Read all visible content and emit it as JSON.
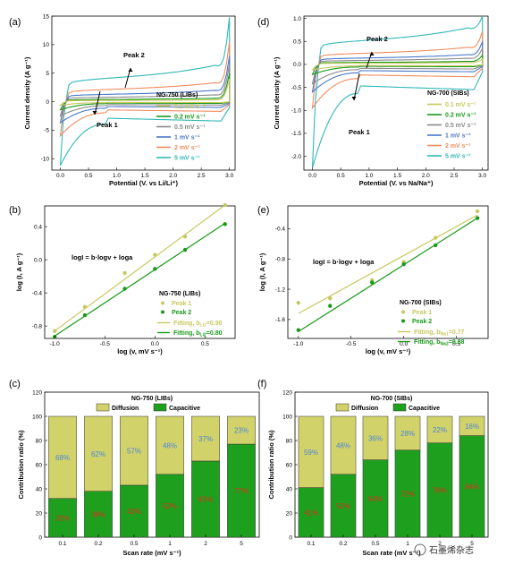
{
  "chart_data": [
    {
      "panel": "(a)",
      "type": "line",
      "xlabel": "Potential (V. vs Li/Li⁺)",
      "ylabel": "Current density (A g⁻¹)",
      "xlim": [
        -0.15,
        3.1
      ],
      "ylim": [
        -12,
        15
      ],
      "xticks": [
        "0.0",
        "0.5",
        "1.0",
        "1.5",
        "2.0",
        "2.5",
        "3.0"
      ],
      "yticks": [
        "-10",
        "-5",
        "0",
        "5",
        "10",
        "15"
      ],
      "legend_title": "NG-750 (LIBs)",
      "annotations": [
        "Peak 2",
        "Peak 1"
      ],
      "series": [
        {
          "name": "0.1 mV s⁻¹",
          "color": "#c8c860",
          "min": -0.6,
          "plateau_top": 0.25,
          "plateau_bot": -0.15,
          "max": 4.0
        },
        {
          "name": "0.2 mV s⁻¹",
          "color": "#1a9a1a",
          "min": -1.4,
          "plateau_top": 0.45,
          "plateau_bot": -0.3,
          "max": 5.0
        },
        {
          "name": "0.5 mV s⁻¹",
          "color": "#8a8a8a",
          "min": -2.5,
          "plateau_top": 0.9,
          "plateau_bot": -0.6,
          "max": 6.5
        },
        {
          "name": "1 mV s⁻¹",
          "color": "#4a78c8",
          "min": -3.7,
          "plateau_top": 1.5,
          "plateau_bot": -1.0,
          "max": 8.0
        },
        {
          "name": "2 mV s⁻¹",
          "color": "#f08c60",
          "min": -6.0,
          "plateau_top": 2.5,
          "plateau_bot": -1.7,
          "max": 10.5
        },
        {
          "name": "5 mV s⁻¹",
          "color": "#30b8b8",
          "min": -11.2,
          "plateau_top": 4.8,
          "plateau_bot": -3.4,
          "max": 14.8
        }
      ]
    },
    {
      "panel": "(d)",
      "type": "line",
      "xlabel": "Potential (V. vs Na/Na⁺)",
      "ylabel": "Current density (A g⁻¹)",
      "xlim": [
        -0.15,
        3.1
      ],
      "ylim": [
        -2.3,
        1.05
      ],
      "xticks": [
        "0.0",
        "0.5",
        "1.0",
        "1.5",
        "2.0",
        "2.5",
        "3.0"
      ],
      "yticks": [
        "-2.0",
        "-1.5",
        "-1.0",
        "-0.5",
        "0.0",
        "0.5",
        "1.0"
      ],
      "legend_title": "NG-700 (SIBs)",
      "annotations": [
        "Peak 2",
        "Peak 1"
      ],
      "series": [
        {
          "name": "0.1 mV s⁻¹",
          "color": "#c8c860",
          "min": -0.12,
          "plateau_top": 0.03,
          "plateau_bot": -0.03,
          "max": 0.12
        },
        {
          "name": "0.2 mV s⁻¹",
          "color": "#1a9a1a",
          "min": -0.22,
          "plateau_top": 0.05,
          "plateau_bot": -0.05,
          "max": 0.2
        },
        {
          "name": "0.5 mV s⁻¹",
          "color": "#8a8a8a",
          "min": -0.42,
          "plateau_top": 0.1,
          "plateau_bot": -0.1,
          "max": 0.35
        },
        {
          "name": "1 mV s⁻¹",
          "color": "#4a78c8",
          "min": -0.6,
          "plateau_top": 0.16,
          "plateau_bot": -0.16,
          "max": 0.5
        },
        {
          "name": "2 mV s⁻¹",
          "color": "#f08c60",
          "min": -0.95,
          "plateau_top": 0.28,
          "plateau_bot": -0.27,
          "max": 0.72
        },
        {
          "name": "5 mV s⁻¹",
          "color": "#30b8b8",
          "min": -2.25,
          "plateau_top": 0.6,
          "plateau_bot": -0.55,
          "max": 1.05
        }
      ]
    },
    {
      "panel": "(b)",
      "type": "scatter",
      "xlabel": "log (v, mV s⁻¹)",
      "ylabel": "log (I, A g⁻¹)",
      "xlim": [
        -1.1,
        0.8
      ],
      "ylim": [
        -0.95,
        0.65
      ],
      "xticks": [
        "-1.0",
        "-0.5",
        "0.0",
        "0.5"
      ],
      "yticks": [
        "-0.8",
        "-0.4",
        "0.0",
        "0.4"
      ],
      "formula": "logI = b·logv + loga",
      "legend_title": "NG-750 (LIBs)",
      "x": [
        -1.0,
        -0.699,
        -0.301,
        0.0,
        0.301,
        0.699
      ],
      "series": [
        {
          "name": "Peak 1",
          "color": "#c8c860",
          "values": [
            -0.86,
            -0.57,
            -0.16,
            0.06,
            0.28,
            0.66
          ],
          "fit": [
            -0.86,
            0.66
          ]
        },
        {
          "name": "Peak 2",
          "color": "#1a9a1a",
          "values": [
            -0.93,
            -0.67,
            -0.35,
            -0.11,
            0.12,
            0.43
          ],
          "fit": [
            -0.92,
            0.44
          ]
        }
      ],
      "fit_labels": [
        {
          "label": "Fitting, b",
          "sub": "Li1",
          "eq": "=0.90"
        },
        {
          "label": "Fitting, b",
          "sub": "Li2",
          "eq": "=0.80"
        }
      ]
    },
    {
      "panel": "(e)",
      "type": "scatter",
      "xlabel": "log (v, mV s⁻¹)",
      "ylabel": "log (I, A g⁻¹)",
      "xlim": [
        -1.1,
        0.8
      ],
      "ylim": [
        -1.85,
        -0.1
      ],
      "xticks": [
        "-1.0",
        "-0.5",
        "0.0",
        "0.5"
      ],
      "yticks": [
        "-1.6",
        "-1.2",
        "-0.8",
        "-0.4"
      ],
      "formula": "logI = b·logv + loga",
      "legend_title": "NG-700 (SIBs)",
      "x": [
        -1.0,
        -0.699,
        -0.301,
        0.0,
        0.301,
        0.699
      ],
      "series": [
        {
          "name": "Peak 1",
          "color": "#c8c860",
          "values": [
            -1.38,
            -1.32,
            -1.08,
            -0.84,
            -0.52,
            -0.17
          ],
          "fit": [
            -1.52,
            -0.22
          ]
        },
        {
          "name": "Peak 2",
          "color": "#1a9a1a",
          "values": [
            -1.74,
            -1.42,
            -1.11,
            -0.87,
            -0.62,
            -0.26
          ],
          "fit": [
            -1.76,
            -0.26
          ]
        }
      ],
      "fit_labels": [
        {
          "label": "Fitting, b",
          "sub": "Na1",
          "eq": "=0.77"
        },
        {
          "label": "Fitting, b",
          "sub": "Na2",
          "eq": "=0.88"
        }
      ]
    },
    {
      "panel": "(c)",
      "type": "bar",
      "stacked": true,
      "title": "NG-750 (LIBs)",
      "xlabel": "Scan rate (mV s⁻¹)",
      "ylabel": "Contribution ratio (%)",
      "ylim": [
        0,
        120
      ],
      "yticks": [
        "0",
        "20",
        "40",
        "60",
        "80",
        "100",
        "120"
      ],
      "categories": [
        "0.1",
        "0.2",
        "0.5",
        "1",
        "2",
        "5"
      ],
      "series": [
        {
          "name": "Capacitive",
          "color": "#1ea01e",
          "values": [
            32,
            38,
            43,
            52,
            63,
            77
          ]
        },
        {
          "name": "Diffusion",
          "color": "#d2d26a",
          "values": [
            68,
            62,
            57,
            48,
            37,
            23
          ]
        }
      ],
      "capacitive_labels": [
        "32%",
        "38%",
        "43%",
        "52%",
        "63%",
        "77%"
      ],
      "diffusion_labels": [
        "68%",
        "62%",
        "57%",
        "48%",
        "37%",
        "23%"
      ]
    },
    {
      "panel": "(f)",
      "type": "bar",
      "stacked": true,
      "title": "NG-700 (SIBs)",
      "xlabel": "Scan rate (mV s⁻¹)",
      "ylabel": "Contribution ratio (%)",
      "ylim": [
        0,
        120
      ],
      "yticks": [
        "0",
        "20",
        "40",
        "60",
        "80",
        "100",
        "120"
      ],
      "categories": [
        "0.1",
        "0.2",
        "0.5",
        "1",
        "2",
        "5"
      ],
      "series": [
        {
          "name": "Capacitive",
          "color": "#1ea01e",
          "values": [
            41,
            52,
            64,
            72,
            78,
            84
          ]
        },
        {
          "name": "Diffusion",
          "color": "#d2d26a",
          "values": [
            59,
            48,
            36,
            28,
            22,
            16
          ]
        }
      ],
      "capacitive_labels": [
        "41%",
        "52%",
        "64%",
        "72%",
        "78%",
        "84%"
      ],
      "diffusion_labels": [
        "59%",
        "48%",
        "36%",
        "28%",
        "22%",
        "16%"
      ]
    }
  ],
  "watermark": "石墨烯杂志",
  "colors": {
    "pct_blue": "#4a86d8",
    "pct_red": "#e0301e",
    "diffusion": "#d2d26a",
    "capacitive": "#1ea01e"
  }
}
